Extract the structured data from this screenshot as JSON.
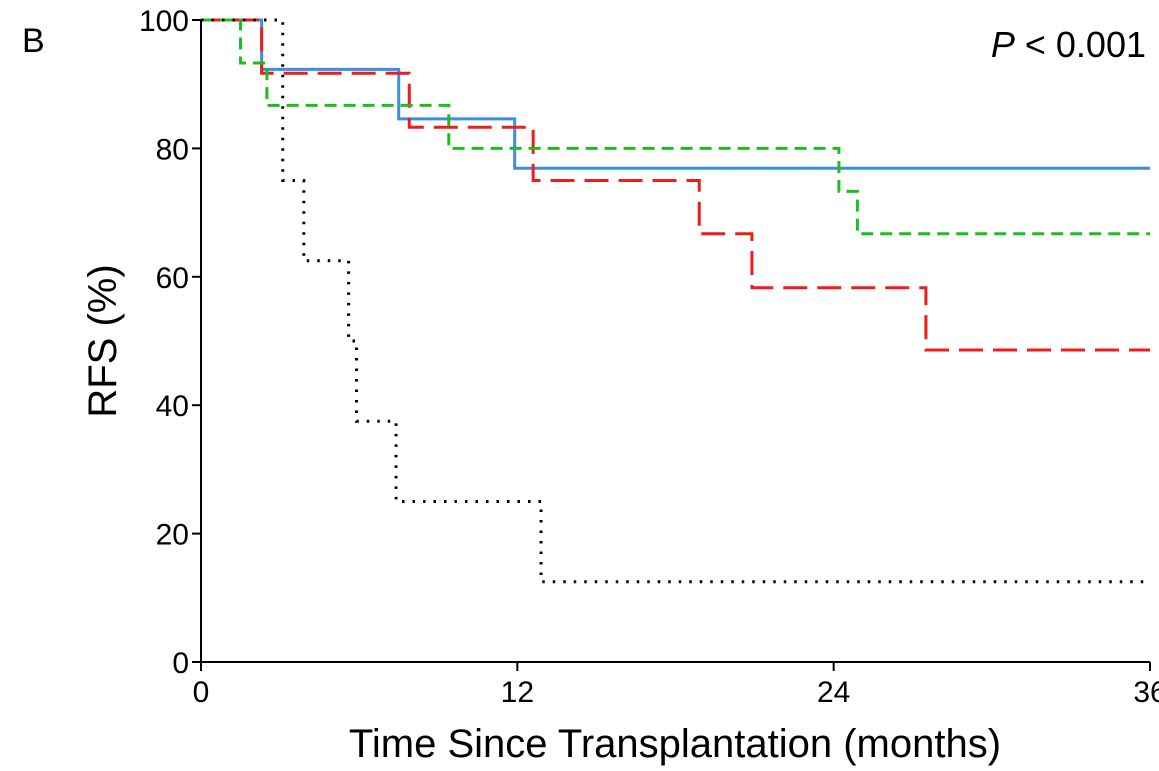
{
  "panel_label": "B",
  "chart_data": {
    "type": "line",
    "step": true,
    "title": "",
    "xlabel": "Time Since Transplantation (months)",
    "ylabel": "RFS (%)",
    "xlim": [
      0,
      36
    ],
    "ylim": [
      0,
      100
    ],
    "xticks": [
      0,
      12,
      24,
      36
    ],
    "yticks": [
      0,
      20,
      40,
      60,
      80,
      100
    ],
    "grid": false,
    "legend": "none",
    "annotation": {
      "italic": "P",
      "text": " < 0.001",
      "position": "top-right"
    },
    "series": [
      {
        "color": "#3a8fe0",
        "dash": "solid",
        "x": [
          0,
          2.3,
          7.5,
          11.9,
          36
        ],
        "y": [
          100,
          92.3,
          84.6,
          76.9,
          76.9
        ]
      },
      {
        "color": "#ee1c1c",
        "dash": "long-dash",
        "x": [
          0,
          2.3,
          7.9,
          12.6,
          18.9,
          20.9,
          27.5,
          36
        ],
        "y": [
          100,
          91.7,
          83.3,
          75.0,
          66.7,
          58.3,
          48.6,
          48.6
        ]
      },
      {
        "color": "#1ebd1e",
        "dash": "short-dash",
        "x": [
          0,
          1.5,
          2.5,
          9.4,
          24.2,
          24.9,
          36
        ],
        "y": [
          100,
          93.3,
          86.7,
          80.0,
          73.3,
          66.7,
          66.7
        ]
      },
      {
        "color": "#000000",
        "dash": "dotted",
        "x": [
          0,
          3.1,
          3.9,
          5.6,
          5.9,
          7.4,
          12.9,
          36
        ],
        "y": [
          100,
          75.0,
          62.5,
          50.0,
          37.5,
          25.0,
          12.5,
          12.5
        ]
      }
    ]
  }
}
